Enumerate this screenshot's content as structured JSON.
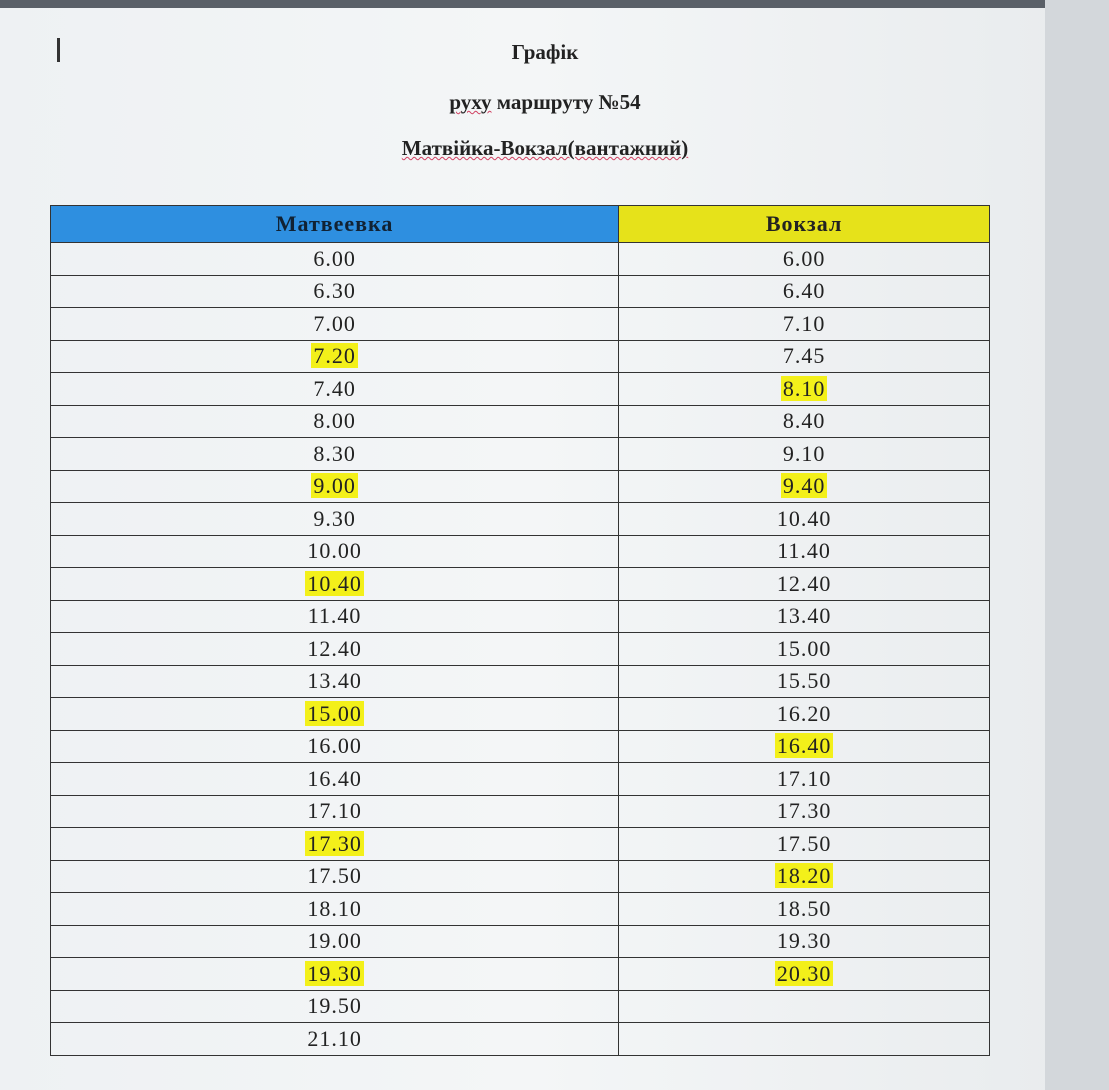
{
  "document": {
    "title": "Графік",
    "subtitle_prefix": "руху",
    "subtitle_rest": "маршруту №54",
    "route": "Матвійка-Вокзал(вантажний)",
    "highlight_color": "#f3f01a",
    "columns": [
      {
        "header": "Матвеевка",
        "header_color": "#2e8fe0"
      },
      {
        "header": "Вокзал",
        "header_color": "#e6e21a"
      }
    ],
    "matveevka": [
      {
        "t": "6.00",
        "h": false
      },
      {
        "t": "6.30",
        "h": false
      },
      {
        "t": "7.00",
        "h": false
      },
      {
        "t": "7.20",
        "h": true
      },
      {
        "t": "7.40",
        "h": false
      },
      {
        "t": "8.00",
        "h": false
      },
      {
        "t": "8.30",
        "h": false
      },
      {
        "t": "9.00",
        "h": true
      },
      {
        "t": "9.30",
        "h": false
      },
      {
        "t": "10.00",
        "h": false
      },
      {
        "t": "10.40",
        "h": true
      },
      {
        "t": "11.40",
        "h": false
      },
      {
        "t": "12.40",
        "h": false
      },
      {
        "t": "13.40",
        "h": false
      },
      {
        "t": "15.00",
        "h": true
      },
      {
        "t": "16.00",
        "h": false
      },
      {
        "t": "16.40",
        "h": false
      },
      {
        "t": "17.10",
        "h": false
      },
      {
        "t": "17.30",
        "h": true
      },
      {
        "t": "17.50",
        "h": false
      },
      {
        "t": "18.10",
        "h": false
      },
      {
        "t": "19.00",
        "h": false
      },
      {
        "t": "19.30",
        "h": true
      },
      {
        "t": "19.50",
        "h": false
      },
      {
        "t": "21.10",
        "h": false
      }
    ],
    "vokzal": [
      {
        "t": "6.00",
        "h": false
      },
      {
        "t": "6.40",
        "h": false
      },
      {
        "t": "7.10",
        "h": false
      },
      {
        "t": "7.45",
        "h": false
      },
      {
        "t": "8.10",
        "h": true
      },
      {
        "t": "8.40",
        "h": false
      },
      {
        "t": "9.10",
        "h": false
      },
      {
        "t": "9.40",
        "h": true
      },
      {
        "t": "10.40",
        "h": false
      },
      {
        "t": "11.40",
        "h": false
      },
      {
        "t": "12.40",
        "h": false
      },
      {
        "t": "13.40",
        "h": false
      },
      {
        "t": "15.00",
        "h": false
      },
      {
        "t": "15.50",
        "h": false
      },
      {
        "t": "16.20",
        "h": false
      },
      {
        "t": "16.40",
        "h": true
      },
      {
        "t": "17.10",
        "h": false
      },
      {
        "t": "17.30",
        "h": false
      },
      {
        "t": "17.50",
        "h": false
      },
      {
        "t": "18.20",
        "h": true
      },
      {
        "t": "18.50",
        "h": false
      },
      {
        "t": "19.30",
        "h": false
      },
      {
        "t": "20.30",
        "h": true
      }
    ]
  }
}
